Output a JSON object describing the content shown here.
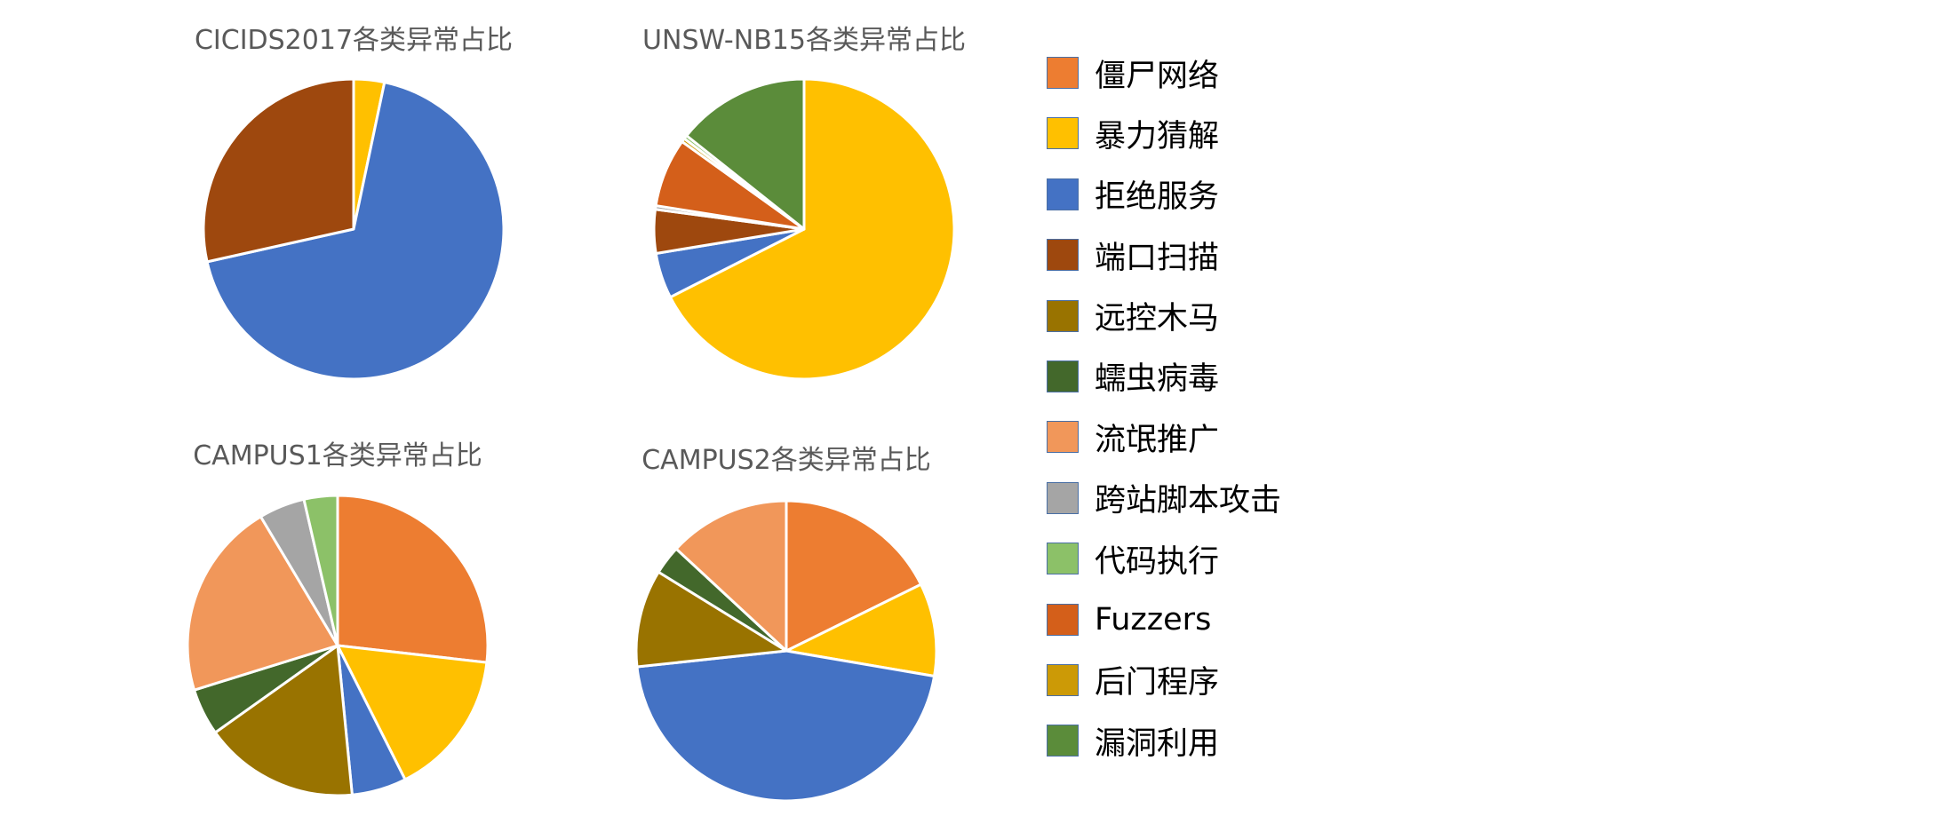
{
  "legend": [
    {
      "label": "僵尸网络",
      "color": "#ED7D31"
    },
    {
      "label": "暴力猜解",
      "color": "#FFC000"
    },
    {
      "label": "拒绝服务",
      "color": "#4472C4"
    },
    {
      "label": "端口扫描",
      "color": "#9E480E"
    },
    {
      "label": "远控木马",
      "color": "#997300"
    },
    {
      "label": "蠕虫病毒",
      "color": "#43682B"
    },
    {
      "label": "流氓推广",
      "color": "#F1975A"
    },
    {
      "label": "跨站脚本攻击",
      "color": "#A5A5A5"
    },
    {
      "label": "代码执行",
      "color": "#8CC168"
    },
    {
      "label": "Fuzzers",
      "color": "#D45F1A"
    },
    {
      "label": "后门程序",
      "color": "#CC9A06"
    },
    {
      "label": "漏洞利用",
      "color": "#5B8C3A"
    }
  ],
  "chart_data": [
    {
      "type": "pie",
      "title": "CICIDS2017各类异常占比",
      "categories": [
        "暴力猜解",
        "拒绝服务",
        "端口扫描"
      ],
      "values": [
        3.3,
        68.2,
        28.5
      ]
    },
    {
      "type": "pie",
      "title": "UNSW-NB15各类异常占比",
      "categories": [
        "暴力猜解",
        "拒绝服务",
        "端口扫描",
        "跨站脚本攻击",
        "Fuzzers",
        "后门程序",
        "代码执行",
        "漏洞利用"
      ],
      "values": [
        67.5,
        4.9,
        4.7,
        0.4,
        7.4,
        0.4,
        0.4,
        14.3
      ]
    },
    {
      "type": "pie",
      "title": "CAMPUS1各类异常占比",
      "categories": [
        "僵尸网络",
        "暴力猜解",
        "拒绝服务",
        "远控木马",
        "蠕虫病毒",
        "流氓推广",
        "跨站脚本攻击",
        "代码执行"
      ],
      "values": [
        26.0,
        15.3,
        5.7,
        16.2,
        4.9,
        20.6,
        4.8,
        3.5
      ]
    },
    {
      "type": "pie",
      "title": "CAMPUS2各类异常占比",
      "categories": [
        "僵尸网络",
        "暴力猜解",
        "拒绝服务",
        "远控木马",
        "蠕虫病毒",
        "流氓推广"
      ],
      "values": [
        17.7,
        10.0,
        45.6,
        10.5,
        3.1,
        13.1
      ]
    }
  ]
}
